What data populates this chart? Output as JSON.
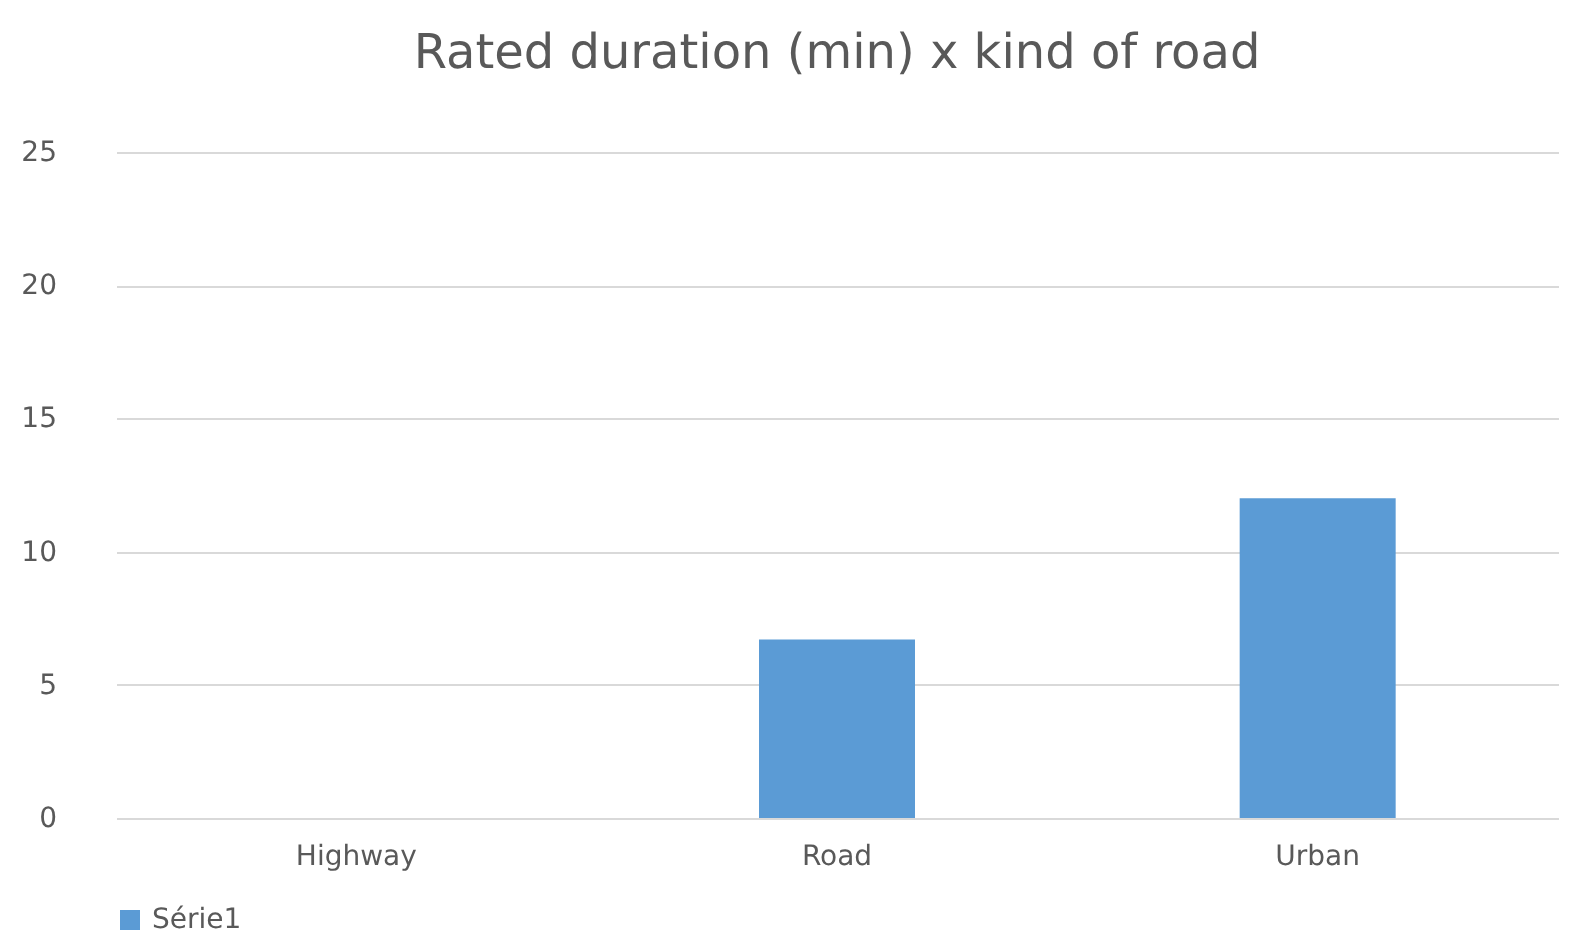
{
  "chart_data": {
    "type": "bar",
    "title": "Rated duration (min) x kind of road",
    "categories": [
      "Highway",
      "Road",
      "Urban"
    ],
    "series": [
      {
        "name": "Série1",
        "color": "#5b9bd5",
        "values": [
          0,
          6.7,
          12
        ]
      }
    ],
    "ylim": [
      0,
      25
    ],
    "yticks": [
      0,
      5,
      10,
      15,
      20,
      25
    ],
    "grid": "y",
    "legend": "bottom"
  }
}
